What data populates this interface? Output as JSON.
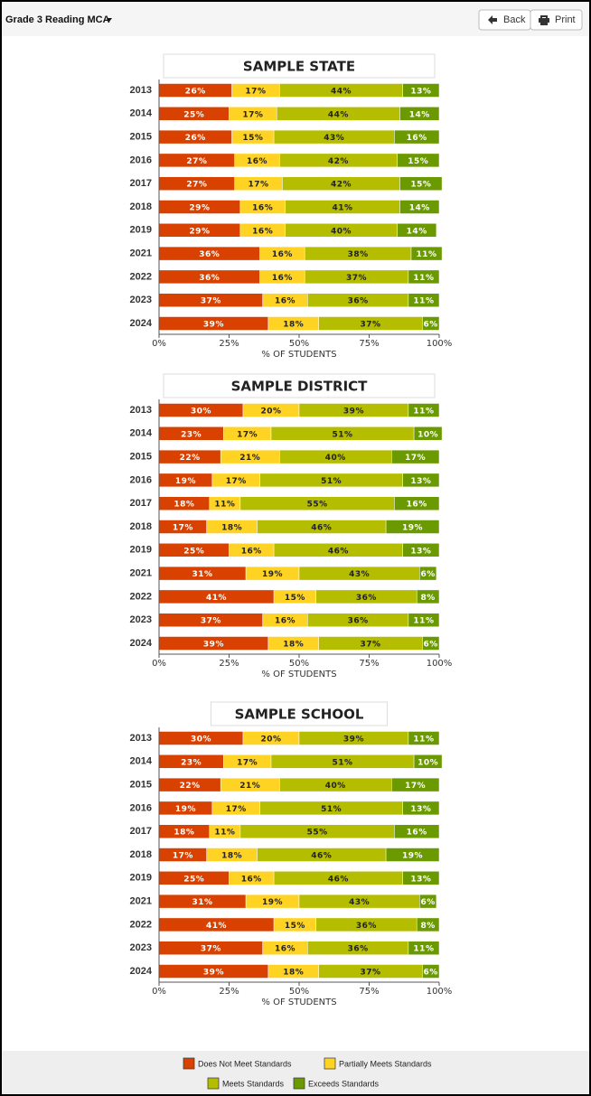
{
  "header": {
    "title": "Grade 3 Reading MCA",
    "buttons": [
      "Back",
      "Print"
    ]
  },
  "chart_data": [
    {
      "type": "stacked-bar",
      "orientation": "horizontal",
      "title": "SAMPLE STATE",
      "xlabel": "% OF STUDENTS",
      "categories": [
        "2013",
        "2014",
        "2015",
        "2016",
        "2017",
        "2018",
        "2019",
        "2021",
        "2022",
        "2023",
        "2024"
      ],
      "xlim": [
        0,
        100
      ],
      "xticks": [
        {
          "value": 0,
          "label": "0%"
        },
        {
          "value": 25,
          "label": "25%"
        },
        {
          "value": 50,
          "label": "50%"
        },
        {
          "value": 75,
          "label": "75%"
        },
        {
          "value": 100,
          "label": "100%"
        }
      ],
      "series": [
        {
          "name": "Does Not Meet Standards",
          "color": "#d94100",
          "values": [
            26,
            25,
            26,
            27,
            27,
            29,
            29,
            36,
            36,
            37,
            39
          ],
          "value_labels": [
            "26%",
            "25%",
            "26%",
            "27%",
            "27%",
            "29%",
            "29%",
            "36%",
            "36%",
            "37%",
            "39%"
          ]
        },
        {
          "name": "Partially Meets Standards",
          "color": "#ffd324",
          "values": [
            17,
            17,
            15,
            16,
            17,
            16,
            16,
            16,
            16,
            16,
            18
          ],
          "value_labels": [
            "17%",
            "17%",
            "15%",
            "16%",
            "17%",
            "16%",
            "16%",
            "16%",
            "16%",
            "16%",
            "18%"
          ]
        },
        {
          "name": "Meets Standards",
          "color": "#b4bd00",
          "values": [
            44,
            44,
            43,
            42,
            42,
            41,
            40,
            38,
            37,
            36,
            37
          ],
          "value_labels": [
            "44%",
            "44%",
            "43%",
            "42%",
            "42%",
            "41%",
            "40%",
            "38%",
            "37%",
            "36%",
            "37%"
          ]
        },
        {
          "name": "Exceeds Standards",
          "color": "#6b9a00",
          "values": [
            13,
            14,
            16,
            15,
            15,
            14,
            14,
            11,
            11,
            11,
            6
          ],
          "value_labels": [
            "13%",
            "14%",
            "16%",
            "15%",
            "15%",
            "14%",
            "14%",
            "11%",
            "11%",
            "11%",
            "6%"
          ]
        }
      ]
    },
    {
      "type": "stacked-bar",
      "orientation": "horizontal",
      "title": "SAMPLE DISTRICT",
      "xlabel": "% OF STUDENTS",
      "categories": [
        "2013",
        "2014",
        "2015",
        "2016",
        "2017",
        "2018",
        "2019",
        "2021",
        "2022",
        "2023",
        "2024"
      ],
      "xlim": [
        0,
        100
      ],
      "xticks": [
        {
          "value": 0,
          "label": "0%"
        },
        {
          "value": 25,
          "label": "25%"
        },
        {
          "value": 50,
          "label": "50%"
        },
        {
          "value": 75,
          "label": "75%"
        },
        {
          "value": 100,
          "label": "100%"
        }
      ],
      "series": [
        {
          "name": "Does Not Meet Standards",
          "color": "#d94100",
          "values": [
            30,
            23,
            22,
            19,
            18,
            17,
            25,
            31,
            41,
            37,
            39
          ],
          "value_labels": [
            "30%",
            "23%",
            "22%",
            "19%",
            "18%",
            "17%",
            "25%",
            "31%",
            "41%",
            "37%",
            "39%"
          ]
        },
        {
          "name": "Partially Meets Standards",
          "color": "#ffd324",
          "values": [
            20,
            17,
            21,
            17,
            11,
            18,
            16,
            19,
            15,
            16,
            18
          ],
          "value_labels": [
            "20%",
            "17%",
            "21%",
            "17%",
            "11%",
            "18%",
            "16%",
            "19%",
            "15%",
            "16%",
            "18%"
          ]
        },
        {
          "name": "Meets Standards",
          "color": "#b4bd00",
          "values": [
            39,
            51,
            40,
            51,
            55,
            46,
            46,
            43,
            36,
            36,
            37
          ],
          "value_labels": [
            "39%",
            "51%",
            "40%",
            "51%",
            "55%",
            "46%",
            "46%",
            "43%",
            "36%",
            "36%",
            "37%"
          ]
        },
        {
          "name": "Exceeds Standards",
          "color": "#6b9a00",
          "values": [
            11,
            10,
            17,
            13,
            16,
            19,
            13,
            6,
            8,
            11,
            6
          ],
          "value_labels": [
            "11%",
            "10%",
            "17%",
            "13%",
            "16%",
            "19%",
            "13%",
            "6%",
            "8%",
            "11%",
            "6%"
          ]
        }
      ]
    },
    {
      "type": "stacked-bar",
      "orientation": "horizontal",
      "title": "SAMPLE SCHOOL",
      "xlabel": "% OF STUDENTS",
      "categories": [
        "2013",
        "2014",
        "2015",
        "2016",
        "2017",
        "2018",
        "2019",
        "2021",
        "2022",
        "2023",
        "2024"
      ],
      "xlim": [
        0,
        100
      ],
      "xticks": [
        {
          "value": 0,
          "label": "0%"
        },
        {
          "value": 25,
          "label": "25%"
        },
        {
          "value": 50,
          "label": "50%"
        },
        {
          "value": 75,
          "label": "75%"
        },
        {
          "value": 100,
          "label": "100%"
        }
      ],
      "series": [
        {
          "name": "Does Not Meet Standards",
          "color": "#d94100",
          "values": [
            30,
            23,
            22,
            19,
            18,
            17,
            25,
            31,
            41,
            37,
            39
          ],
          "value_labels": [
            "30%",
            "23%",
            "22%",
            "19%",
            "18%",
            "17%",
            "25%",
            "31%",
            "41%",
            "37%",
            "39%"
          ]
        },
        {
          "name": "Partially Meets Standards",
          "color": "#ffd324",
          "values": [
            20,
            17,
            21,
            17,
            11,
            18,
            16,
            19,
            15,
            16,
            18
          ],
          "value_labels": [
            "20%",
            "17%",
            "21%",
            "17%",
            "11%",
            "18%",
            "16%",
            "19%",
            "15%",
            "16%",
            "18%"
          ]
        },
        {
          "name": "Meets Standards",
          "color": "#b4bd00",
          "values": [
            39,
            51,
            40,
            51,
            55,
            46,
            46,
            43,
            36,
            36,
            37
          ],
          "value_labels": [
            "39%",
            "51%",
            "40%",
            "51%",
            "55%",
            "46%",
            "46%",
            "43%",
            "36%",
            "36%",
            "37%"
          ]
        },
        {
          "name": "Exceeds Standards",
          "color": "#6b9a00",
          "values": [
            11,
            10,
            17,
            13,
            16,
            19,
            13,
            6,
            8,
            11,
            6
          ],
          "value_labels": [
            "11%",
            "10%",
            "17%",
            "13%",
            "16%",
            "19%",
            "13%",
            "6%",
            "8%",
            "11%",
            "6%"
          ]
        }
      ]
    }
  ]
}
